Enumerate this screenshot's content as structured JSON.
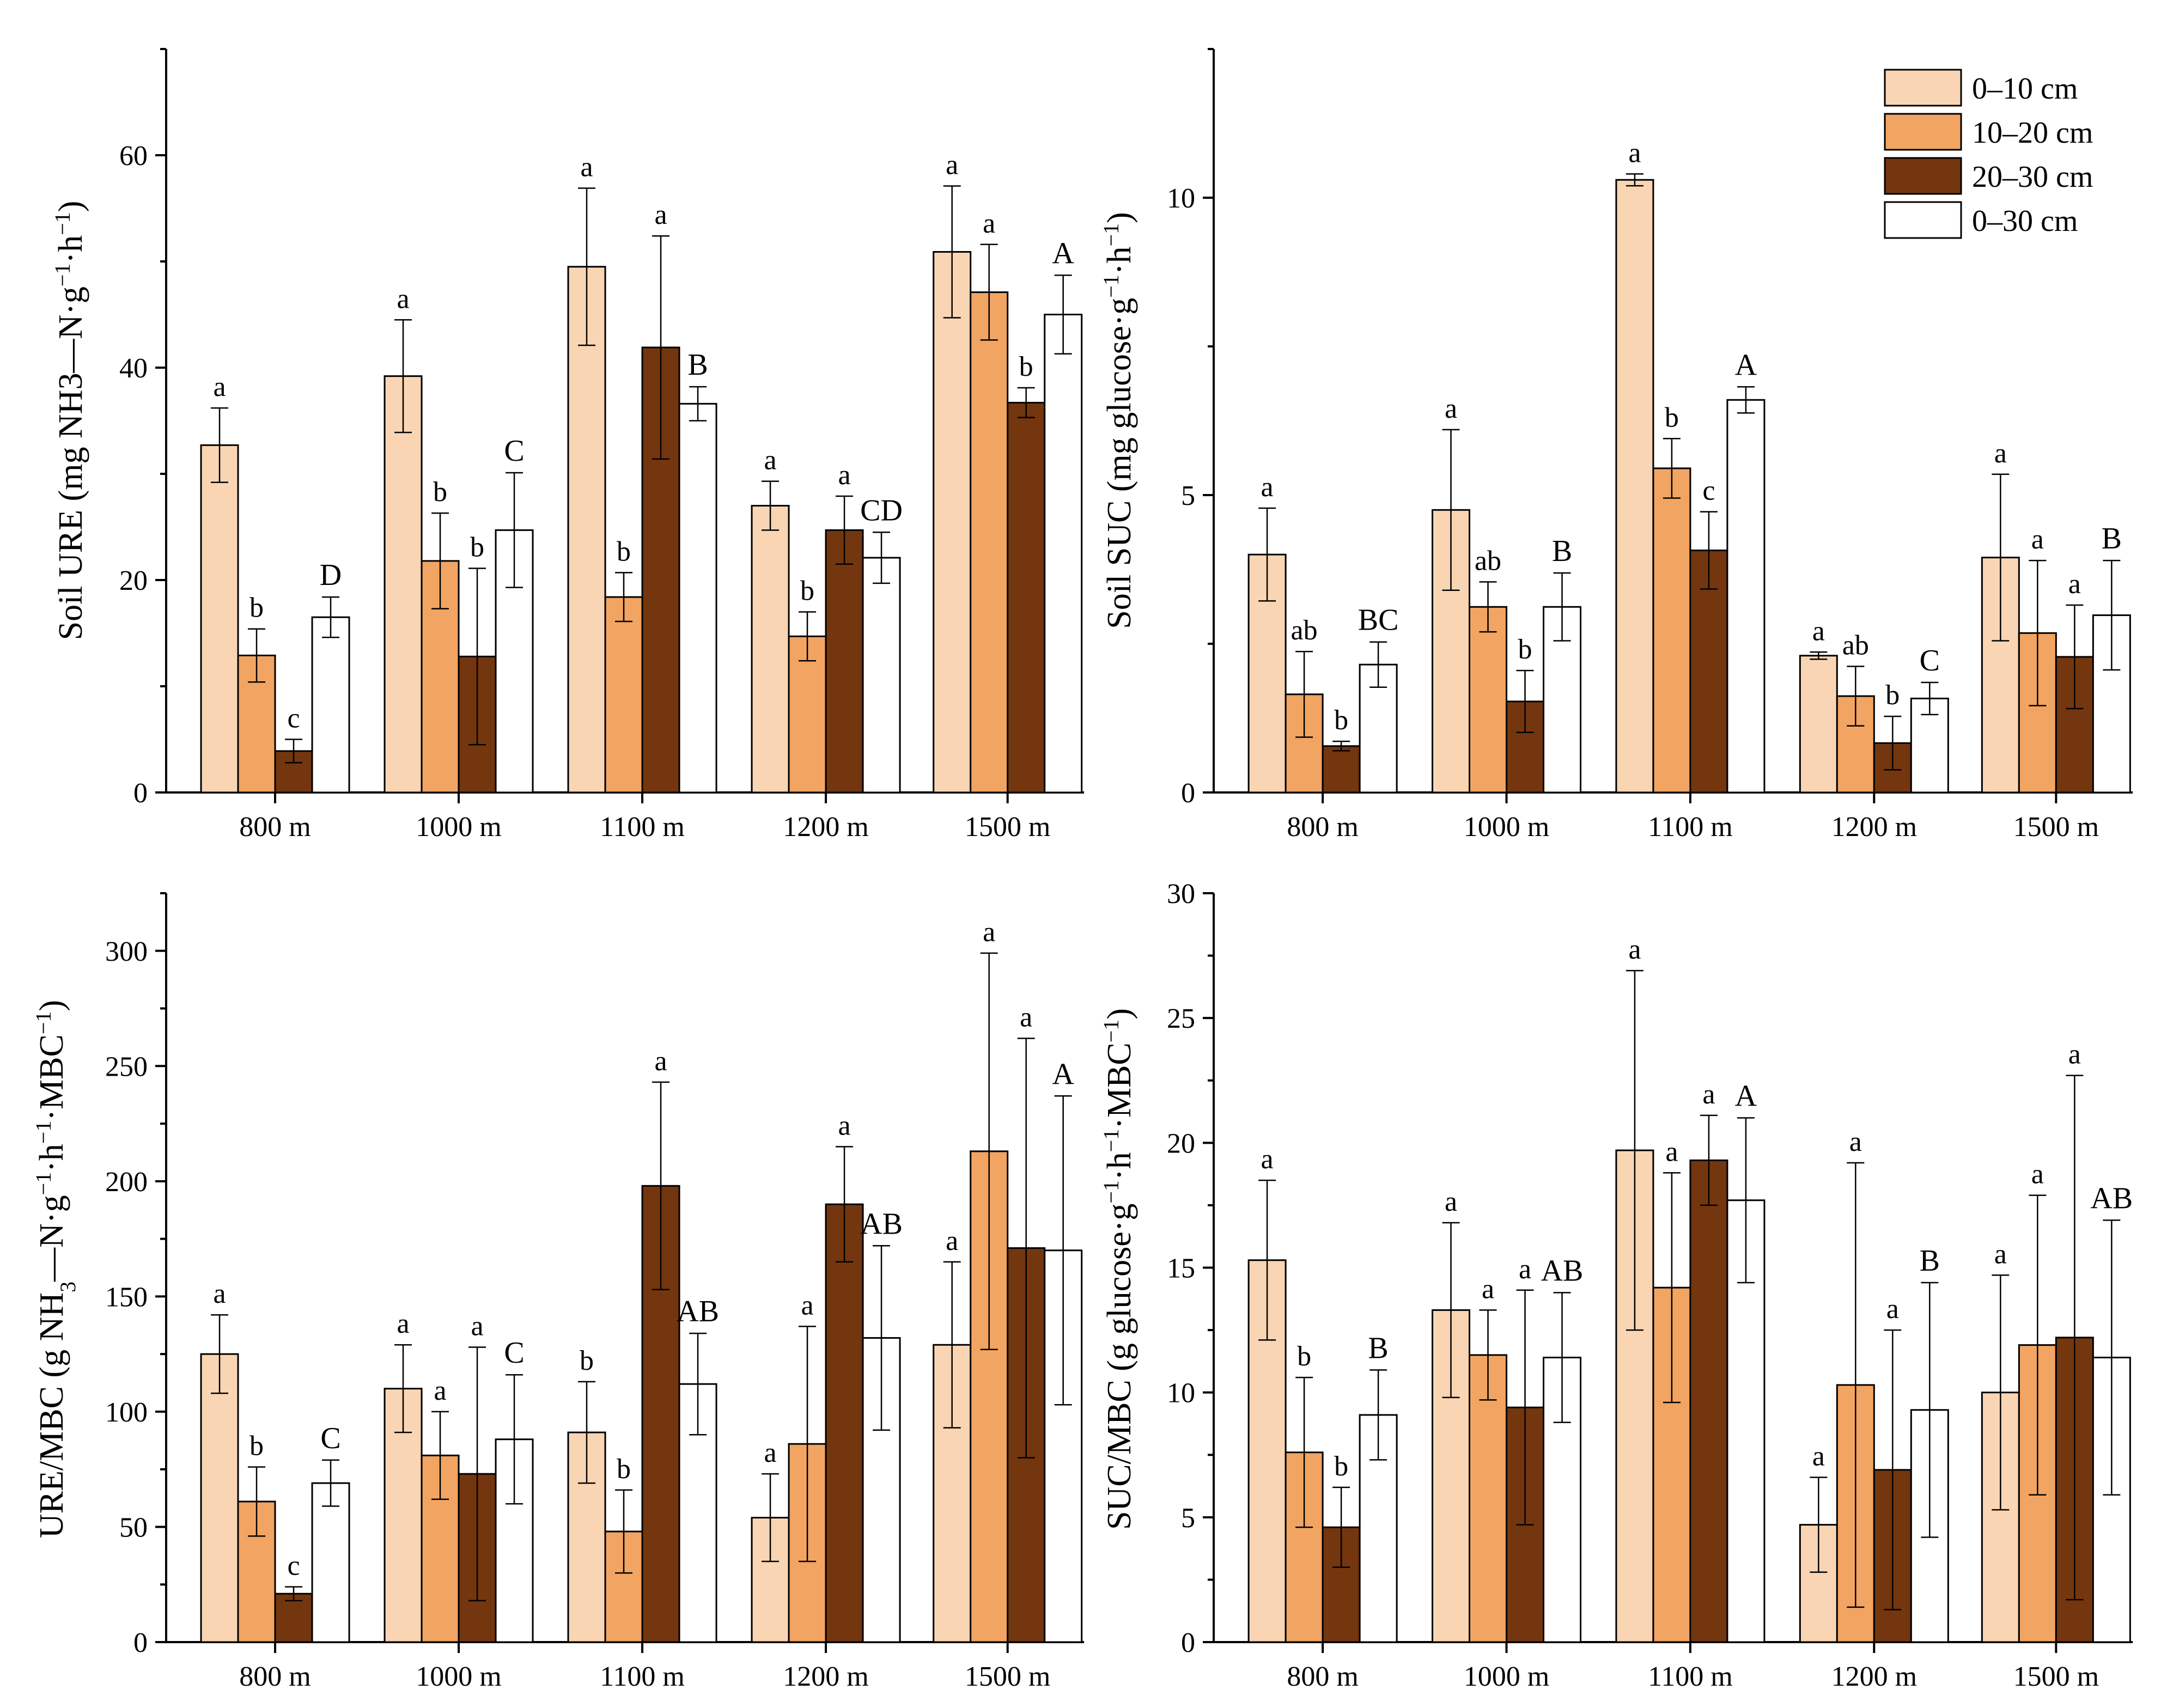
{
  "legend": {
    "items": [
      {
        "label": "0–10 cm",
        "color": "#f9d5b4"
      },
      {
        "label": "10–20 cm",
        "color": "#f2a462"
      },
      {
        "label": "20–30 cm",
        "color": "#74360e"
      },
      {
        "label": "0–30 cm",
        "color": "#ffffff"
      }
    ]
  },
  "chart_data": [
    {
      "type": "bar",
      "id": "ure",
      "ylabel": "Soil URE (mg NH3—N·g⁻¹·h⁻¹)",
      "ylabel_parts": [
        {
          "t": "Soil URE (mg NH3—N·g"
        },
        {
          "t": "−1",
          "sup": true
        },
        {
          "t": "·h"
        },
        {
          "t": "−1",
          "sup": true
        },
        {
          "t": ")"
        }
      ],
      "ylim": [
        0,
        70
      ],
      "yticks": [
        0,
        20,
        40,
        60
      ],
      "categories": [
        "800 m",
        "1000 m",
        "1100 m",
        "1200 m",
        "1500 m"
      ],
      "series": [
        {
          "name": "0–10 cm",
          "values": [
            32.7,
            39.2,
            49.5,
            27.0,
            50.9
          ],
          "errors": [
            3.5,
            5.3,
            7.4,
            2.3,
            6.2
          ],
          "letters": [
            "a",
            "a",
            "a",
            "a",
            "a"
          ]
        },
        {
          "name": "10–20 cm",
          "values": [
            12.9,
            21.8,
            18.4,
            14.7,
            47.1
          ],
          "errors": [
            2.5,
            4.5,
            2.3,
            2.3,
            4.5
          ],
          "letters": [
            "b",
            "b",
            "b",
            "b",
            "a"
          ]
        },
        {
          "name": "20–30 cm",
          "values": [
            3.9,
            12.8,
            41.9,
            24.7,
            36.7
          ],
          "errors": [
            1.1,
            8.3,
            10.5,
            3.2,
            1.4
          ],
          "letters": [
            "c",
            "b",
            "a",
            "a",
            "b"
          ]
        },
        {
          "name": "0–30 cm",
          "values": [
            16.5,
            24.7,
            36.6,
            22.1,
            45.0
          ],
          "errors": [
            1.9,
            5.4,
            1.6,
            2.4,
            3.7
          ],
          "letters": [
            "D",
            "C",
            "B",
            "CD",
            "A"
          ]
        }
      ]
    },
    {
      "type": "bar",
      "id": "suc",
      "ylabel": "Soil SUC (mg glucose·g⁻¹·h⁻¹)",
      "ylabel_parts": [
        {
          "t": "Soil SUC (mg glucose·g"
        },
        {
          "t": "−1",
          "sup": true
        },
        {
          "t": "·h"
        },
        {
          "t": "−1",
          "sup": true
        },
        {
          "t": ")"
        }
      ],
      "ylim": [
        0,
        12.5
      ],
      "yticks": [
        0,
        5,
        10
      ],
      "categories": [
        "800 m",
        "1000 m",
        "1100 m",
        "1200 m",
        "1500 m"
      ],
      "series": [
        {
          "name": "0–10 cm",
          "values": [
            4.0,
            4.75,
            10.3,
            2.3,
            3.95
          ],
          "errors": [
            0.78,
            1.35,
            0.1,
            0.06,
            1.4
          ],
          "letters": [
            "a",
            "a",
            "a",
            "a",
            "a"
          ]
        },
        {
          "name": "10–20 cm",
          "values": [
            1.65,
            3.12,
            5.45,
            1.62,
            2.68
          ],
          "errors": [
            0.72,
            0.42,
            0.5,
            0.5,
            1.22
          ],
          "letters": [
            "ab",
            "ab",
            "b",
            "ab",
            "a"
          ]
        },
        {
          "name": "20–30 cm",
          "values": [
            0.78,
            1.53,
            4.07,
            0.83,
            2.28
          ],
          "errors": [
            0.08,
            0.52,
            0.65,
            0.45,
            0.87
          ],
          "letters": [
            "b",
            "b",
            "c",
            "b",
            "a"
          ]
        },
        {
          "name": "0–30 cm",
          "values": [
            2.15,
            3.12,
            6.6,
            1.58,
            2.98
          ],
          "errors": [
            0.38,
            0.57,
            0.22,
            0.27,
            0.92
          ],
          "letters": [
            "BC",
            "B",
            "A",
            "C",
            "B"
          ]
        }
      ]
    },
    {
      "type": "bar",
      "id": "ure-mbc",
      "ylabel": "URE/MBC (g NH₃—N·g⁻¹·h⁻¹·MBC⁻¹)",
      "ylabel_parts": [
        {
          "t": "URE/MBC (g NH"
        },
        {
          "t": "3",
          "sub": true
        },
        {
          "t": "—N·g"
        },
        {
          "t": "−1",
          "sup": true
        },
        {
          "t": "·h"
        },
        {
          "t": "−1",
          "sup": true
        },
        {
          "t": "·MBC"
        },
        {
          "t": "−1",
          "sup": true
        },
        {
          "t": ")"
        }
      ],
      "ylim": [
        0,
        325
      ],
      "yticks": [
        0,
        50,
        100,
        150,
        200,
        250,
        300
      ],
      "categories": [
        "800 m",
        "1000 m",
        "1100 m",
        "1200 m",
        "1500 m"
      ],
      "series": [
        {
          "name": "0–10 cm",
          "values": [
            125,
            110,
            91,
            54,
            129
          ],
          "errors": [
            17,
            19,
            22,
            19,
            36
          ],
          "letters": [
            "a",
            "a",
            "b",
            "a",
            "a"
          ]
        },
        {
          "name": "10–20 cm",
          "values": [
            61,
            81,
            48,
            86,
            213
          ],
          "errors": [
            15,
            19,
            18,
            51,
            86
          ],
          "letters": [
            "b",
            "a",
            "b",
            "a",
            "a"
          ]
        },
        {
          "name": "20–30 cm",
          "values": [
            21,
            73,
            198,
            190,
            171
          ],
          "errors": [
            3,
            55,
            45,
            25,
            91
          ],
          "letters": [
            "c",
            "a",
            "a",
            "a",
            "a"
          ]
        },
        {
          "name": "0–30 cm",
          "values": [
            69,
            88,
            112,
            132,
            170
          ],
          "errors": [
            10,
            28,
            22,
            40,
            67
          ],
          "letters": [
            "C",
            "C",
            "AB",
            "AB",
            "A"
          ]
        }
      ]
    },
    {
      "type": "bar",
      "id": "suc-mbc",
      "ylabel": "SUC/MBC (g glucose·g⁻¹·h⁻¹·MBC⁻¹)",
      "ylabel_parts": [
        {
          "t": "SUC/MBC (g glucose·g"
        },
        {
          "t": "−1",
          "sup": true
        },
        {
          "t": "·h"
        },
        {
          "t": "−1",
          "sup": true
        },
        {
          "t": "·MBC"
        },
        {
          "t": "−1",
          "sup": true
        },
        {
          "t": ")"
        }
      ],
      "ylim": [
        0,
        30
      ],
      "yticks": [
        0,
        5,
        10,
        15,
        20,
        25,
        30
      ],
      "categories": [
        "800 m",
        "1000 m",
        "1100 m",
        "1200 m",
        "1500 m"
      ],
      "series": [
        {
          "name": "0–10 cm",
          "values": [
            15.3,
            13.3,
            19.7,
            4.7,
            10.0
          ],
          "errors": [
            3.2,
            3.5,
            7.2,
            1.9,
            4.7
          ],
          "letters": [
            "a",
            "a",
            "a",
            "a",
            "a"
          ]
        },
        {
          "name": "10–20 cm",
          "values": [
            7.6,
            11.5,
            14.2,
            10.3,
            11.9
          ],
          "errors": [
            3.0,
            1.8,
            4.6,
            8.9,
            6.0
          ],
          "letters": [
            "b",
            "a",
            "a",
            "a",
            "a"
          ]
        },
        {
          "name": "20–30 cm",
          "values": [
            4.6,
            9.4,
            19.3,
            6.9,
            12.2
          ],
          "errors": [
            1.6,
            4.7,
            1.8,
            5.6,
            10.5
          ],
          "letters": [
            "b",
            "a",
            "a",
            "a",
            "a"
          ]
        },
        {
          "name": "0–30 cm",
          "values": [
            9.1,
            11.4,
            17.7,
            9.3,
            11.4
          ],
          "errors": [
            1.8,
            2.6,
            3.3,
            5.1,
            5.5
          ],
          "letters": [
            "B",
            "AB",
            "A",
            "B",
            "AB"
          ]
        }
      ]
    }
  ]
}
